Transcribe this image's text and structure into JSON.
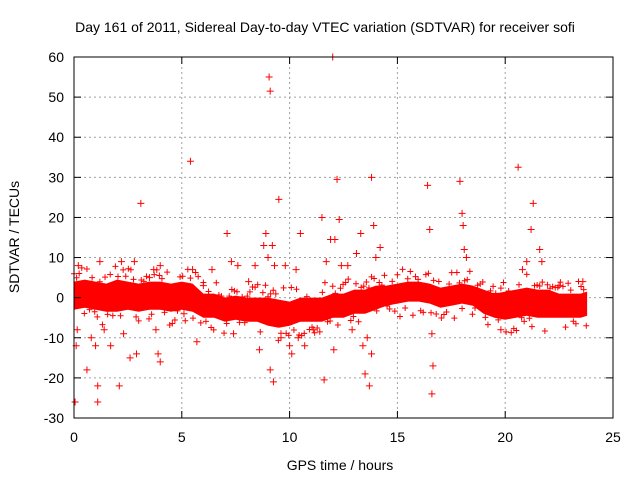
{
  "chart_data": {
    "type": "scatter",
    "title": "Day 161 of 2011, Sidereal Day-to-day VTEC variation (SDTVAR) for receiver sofi",
    "xlabel": "GPS time / hours",
    "ylabel": "SDTVAR / TECUs",
    "xlim": [
      0,
      25
    ],
    "ylim": [
      -30,
      60
    ],
    "x_ticks": [
      0,
      5,
      10,
      15,
      20,
      25
    ],
    "y_ticks": [
      -30,
      -20,
      -10,
      0,
      10,
      20,
      30,
      40,
      50,
      60
    ],
    "grid": true,
    "marker": "+",
    "color": "#ff0000",
    "band": {
      "description": "dense continuous band of points",
      "x": [
        0.0,
        0.5,
        1.0,
        1.5,
        2.0,
        2.5,
        3.0,
        3.5,
        4.0,
        4.5,
        5.0,
        5.5,
        6.0,
        6.5,
        7.0,
        7.5,
        8.0,
        8.5,
        9.0,
        9.5,
        10.0,
        10.5,
        11.0,
        11.5,
        12.0,
        12.5,
        13.0,
        13.5,
        14.0,
        14.5,
        15.0,
        15.5,
        16.0,
        16.5,
        17.0,
        17.5,
        18.0,
        18.5,
        19.0,
        19.5,
        20.0,
        20.5,
        21.0,
        21.5,
        22.0,
        22.5,
        23.0,
        23.5,
        23.8
      ],
      "center": [
        0.5,
        1.0,
        0.5,
        0.0,
        0.5,
        0.5,
        0.0,
        0.5,
        0.5,
        0.0,
        0.5,
        0.0,
        -2.0,
        -2.0,
        -3.0,
        -2.5,
        -3.0,
        -3.0,
        -3.5,
        -4.0,
        -4.0,
        -3.0,
        -3.0,
        -3.0,
        -2.0,
        -2.0,
        -1.0,
        -1.0,
        0.0,
        0.5,
        1.0,
        1.5,
        1.5,
        1.0,
        0.0,
        0.5,
        1.0,
        0.5,
        -1.0,
        -2.0,
        -2.0,
        -1.5,
        -1.0,
        -1.5,
        -1.5,
        -2.0,
        -2.0,
        -2.0,
        -1.5
      ],
      "half_width": [
        3.5,
        3.5,
        3.5,
        3.5,
        4.0,
        3.5,
        3.5,
        3.5,
        3.5,
        3.5,
        3.5,
        3.5,
        3.0,
        3.0,
        3.0,
        3.0,
        3.0,
        3.0,
        3.5,
        3.5,
        3.0,
        3.0,
        3.0,
        3.0,
        3.0,
        3.0,
        3.0,
        3.0,
        3.0,
        2.5,
        2.5,
        2.5,
        2.5,
        2.5,
        2.5,
        2.5,
        2.5,
        2.5,
        3.0,
        3.0,
        3.5,
        3.5,
        3.5,
        3.5,
        3.5,
        3.0,
        3.0,
        3.0,
        3.0
      ]
    },
    "points": [
      {
        "x": 0.05,
        "y": -26
      },
      {
        "x": 0.1,
        "y": -12
      },
      {
        "x": 0.15,
        "y": -8
      },
      {
        "x": 0.2,
        "y": 8
      },
      {
        "x": 0.6,
        "y": -18
      },
      {
        "x": 0.8,
        "y": -10
      },
      {
        "x": 1.0,
        "y": -12
      },
      {
        "x": 1.1,
        "y": -26
      },
      {
        "x": 1.1,
        "y": -22
      },
      {
        "x": 1.2,
        "y": 9
      },
      {
        "x": 1.4,
        "y": -8
      },
      {
        "x": 1.7,
        "y": -12
      },
      {
        "x": 2.1,
        "y": -22
      },
      {
        "x": 2.2,
        "y": 9
      },
      {
        "x": 2.3,
        "y": -9
      },
      {
        "x": 2.6,
        "y": -15
      },
      {
        "x": 2.8,
        "y": 9
      },
      {
        "x": 2.9,
        "y": -14
      },
      {
        "x": 3.1,
        "y": 23.5
      },
      {
        "x": 3.5,
        "y": 5
      },
      {
        "x": 3.7,
        "y": 7
      },
      {
        "x": 3.8,
        "y": -8
      },
      {
        "x": 3.9,
        "y": -14
      },
      {
        "x": 4.0,
        "y": 8
      },
      {
        "x": 4.0,
        "y": -16
      },
      {
        "x": 5.1,
        "y": -4
      },
      {
        "x": 5.4,
        "y": 34
      },
      {
        "x": 5.5,
        "y": 7
      },
      {
        "x": 5.7,
        "y": -11
      },
      {
        "x": 6.0,
        "y": 3
      },
      {
        "x": 6.4,
        "y": 7
      },
      {
        "x": 7.1,
        "y": 16
      },
      {
        "x": 7.3,
        "y": 9
      },
      {
        "x": 7.4,
        "y": -9
      },
      {
        "x": 7.6,
        "y": 8
      },
      {
        "x": 8.1,
        "y": 4
      },
      {
        "x": 8.4,
        "y": 8
      },
      {
        "x": 8.6,
        "y": -13
      },
      {
        "x": 8.8,
        "y": 13
      },
      {
        "x": 8.9,
        "y": 16
      },
      {
        "x": 9.0,
        "y": 10
      },
      {
        "x": 9.05,
        "y": 55
      },
      {
        "x": 9.1,
        "y": 51.5
      },
      {
        "x": 9.1,
        "y": -18
      },
      {
        "x": 9.2,
        "y": 13
      },
      {
        "x": 9.25,
        "y": -21
      },
      {
        "x": 9.3,
        "y": 8
      },
      {
        "x": 9.5,
        "y": 24.5
      },
      {
        "x": 9.6,
        "y": -10
      },
      {
        "x": 9.8,
        "y": 8
      },
      {
        "x": 10.0,
        "y": -12
      },
      {
        "x": 10.1,
        "y": -14
      },
      {
        "x": 10.3,
        "y": 7
      },
      {
        "x": 10.4,
        "y": -10
      },
      {
        "x": 10.5,
        "y": 16
      },
      {
        "x": 10.7,
        "y": -12
      },
      {
        "x": 11.1,
        "y": -8
      },
      {
        "x": 11.5,
        "y": 20
      },
      {
        "x": 11.6,
        "y": -20.5
      },
      {
        "x": 11.7,
        "y": 9
      },
      {
        "x": 11.9,
        "y": 14.5
      },
      {
        "x": 12.0,
        "y": 60
      },
      {
        "x": 12.05,
        "y": -13
      },
      {
        "x": 12.1,
        "y": 14.5
      },
      {
        "x": 12.2,
        "y": 29.5
      },
      {
        "x": 12.3,
        "y": 19.5
      },
      {
        "x": 12.4,
        "y": 8
      },
      {
        "x": 12.7,
        "y": 8
      },
      {
        "x": 12.9,
        "y": -8
      },
      {
        "x": 13.1,
        "y": 11
      },
      {
        "x": 13.3,
        "y": 16
      },
      {
        "x": 13.4,
        "y": -12
      },
      {
        "x": 13.5,
        "y": -19
      },
      {
        "x": 13.6,
        "y": -10
      },
      {
        "x": 13.7,
        "y": -22
      },
      {
        "x": 13.8,
        "y": 30
      },
      {
        "x": 13.8,
        "y": -14
      },
      {
        "x": 13.9,
        "y": 18
      },
      {
        "x": 14.0,
        "y": 10
      },
      {
        "x": 14.2,
        "y": 12.5
      },
      {
        "x": 16.4,
        "y": 28
      },
      {
        "x": 16.5,
        "y": 17
      },
      {
        "x": 16.6,
        "y": -9
      },
      {
        "x": 16.6,
        "y": -24
      },
      {
        "x": 16.65,
        "y": -17
      },
      {
        "x": 17.9,
        "y": 29
      },
      {
        "x": 18.0,
        "y": 21
      },
      {
        "x": 18.05,
        "y": 18
      },
      {
        "x": 18.1,
        "y": 12
      },
      {
        "x": 18.2,
        "y": 10
      },
      {
        "x": 19.8,
        "y": -8
      },
      {
        "x": 20.6,
        "y": 32.5
      },
      {
        "x": 20.8,
        "y": 7
      },
      {
        "x": 21.0,
        "y": 9
      },
      {
        "x": 21.2,
        "y": 17
      },
      {
        "x": 21.3,
        "y": 23.5
      },
      {
        "x": 21.6,
        "y": 12
      },
      {
        "x": 21.7,
        "y": 9
      },
      {
        "x": 22.5,
        "y": 3
      },
      {
        "x": 23.6,
        "y": 4
      }
    ]
  }
}
